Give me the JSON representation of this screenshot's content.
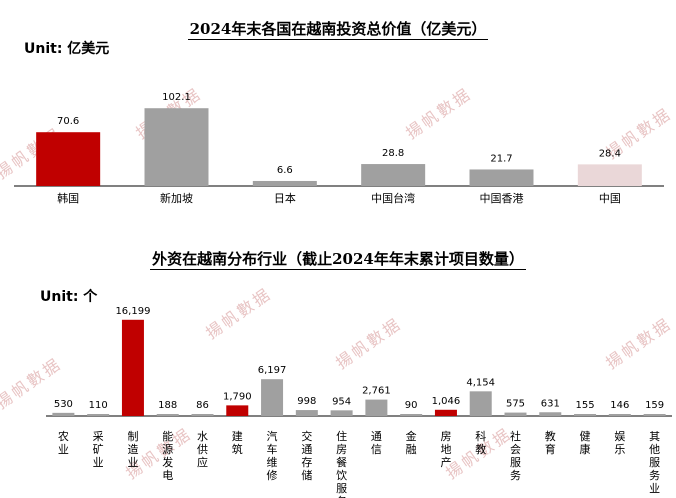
{
  "watermark": "揚帆數据",
  "charts": [
    {
      "title": "2024年末各国在越南投资总价值（亿美元）",
      "unit_label": "Unit: 亿美元"
    },
    {
      "title": "外资在越南分布行业（截止2024年年末累计项目数量）",
      "unit_label": "Unit: 个"
    }
  ],
  "colors": {
    "red": "#c00000",
    "gray": "#a0a0a0",
    "pink": "#ead7d8"
  },
  "chart_data": [
    {
      "type": "bar",
      "title": "2024年末各国在越南投资总价值（亿美元）",
      "ylabel": "Unit: 亿美元",
      "categories": [
        "韩国",
        "新加坡",
        "日本",
        "中国台湾",
        "中国香港",
        "中国"
      ],
      "values": [
        70.6,
        102.1,
        6.6,
        28.8,
        21.7,
        28.4
      ],
      "value_labels": [
        "70.6",
        "102.1",
        "6.6",
        "28.8",
        "21.7",
        "28.4"
      ],
      "bar_colors": [
        "#c00000",
        "#a0a0a0",
        "#a0a0a0",
        "#a0a0a0",
        "#a0a0a0",
        "#ead7d8"
      ],
      "ylim": [
        0,
        105
      ],
      "grid": false
    },
    {
      "type": "bar",
      "title": "外资在越南分布行业（截止2024年年末累计项目数量）",
      "ylabel": "Unit: 个",
      "categories": [
        "农业",
        "采矿业",
        "制造业",
        "能源发电",
        "水供应",
        "建筑",
        "汽车维修",
        "交通存储",
        "住房餐饮服务",
        "通信",
        "金融",
        "房地产",
        "科教",
        "社会服务",
        "教育",
        "健康",
        "娱乐",
        "其他服务业"
      ],
      "values": [
        530,
        110,
        16199,
        188,
        86,
        1790,
        6197,
        998,
        954,
        2761,
        90,
        1046,
        4154,
        575,
        631,
        155,
        146,
        159
      ],
      "value_labels": [
        "530",
        "110",
        "16,199",
        "188",
        "86",
        "1,790",
        "6,197",
        "998",
        "954",
        "2,761",
        "90",
        "1,046",
        "4,154",
        "575",
        "631",
        "155",
        "146",
        "159"
      ],
      "bar_colors": [
        "#a0a0a0",
        "#a0a0a0",
        "#c00000",
        "#a0a0a0",
        "#a0a0a0",
        "#c00000",
        "#a0a0a0",
        "#a0a0a0",
        "#a0a0a0",
        "#a0a0a0",
        "#a0a0a0",
        "#c00000",
        "#a0a0a0",
        "#a0a0a0",
        "#a0a0a0",
        "#a0a0a0",
        "#a0a0a0",
        "#a0a0a0"
      ],
      "ylim": [
        0,
        16500
      ],
      "grid": false
    }
  ]
}
